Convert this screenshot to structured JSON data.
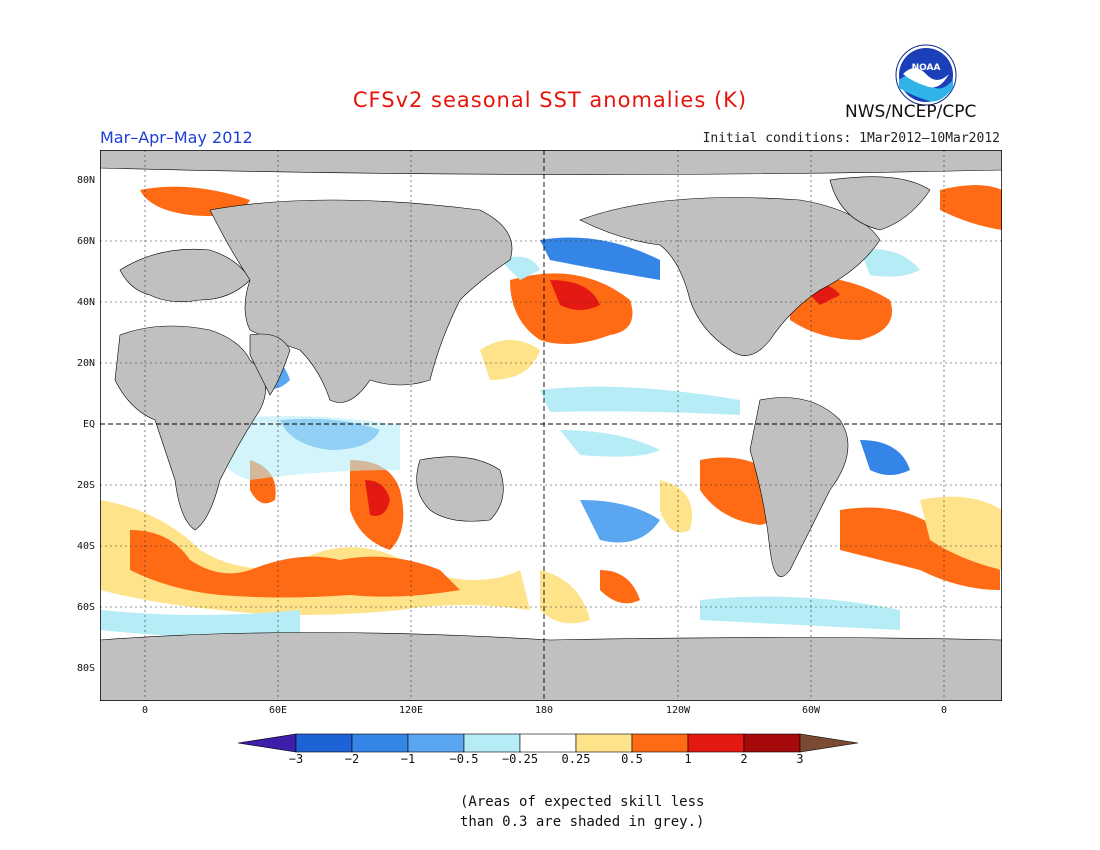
{
  "title": "CFSv2 seasonal SST anomalies (K)",
  "agency": "NWS/NCEP/CPC",
  "logo_text": "NOAA",
  "period": "Mar–Apr–May 2012",
  "initial_conditions": "Initial conditions: 1Mar2012–10Mar2012",
  "note_line1": "(Areas of expected skill less",
  "note_line2": "than 0.3 are shaded in grey.)",
  "lat_labels": [
    "80N",
    "60N",
    "40N",
    "20N",
    "EQ",
    "20S",
    "40S",
    "60S",
    "80S"
  ],
  "lon_labels": [
    "0",
    "60E",
    "120E",
    "180",
    "120W",
    "60W",
    "0"
  ],
  "colorbar": {
    "labels": [
      "−3",
      "−2",
      "−1",
      "−0.5",
      "−0.25",
      "0.25",
      "0.5",
      "1",
      "2",
      "3"
    ],
    "colors": [
      "#3d1ea8",
      "#1e63d6",
      "#3585e6",
      "#5aa6f0",
      "#b5ecf6",
      "#ffffff",
      "#ffe38a",
      "#ff6a14",
      "#e41a12",
      "#a60a0a",
      "#7a4a32"
    ]
  },
  "colors": {
    "land": "#c0c0c0",
    "ocean": "#ffffff",
    "grey_skill": "#c0c0c0"
  }
}
